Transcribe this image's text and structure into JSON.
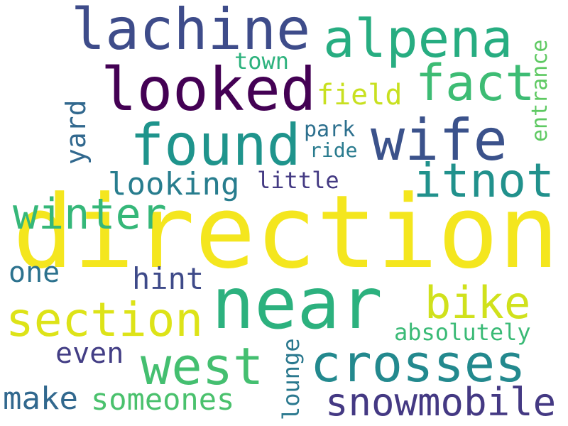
{
  "words": [
    {
      "text": "direction",
      "color": "#f4e61e"
    },
    {
      "text": "near",
      "color": "#2cb17e"
    },
    {
      "text": "lachine",
      "color": "#3e4c8a"
    },
    {
      "text": "alpena",
      "color": "#27ad81"
    },
    {
      "text": "looked",
      "color": "#440154"
    },
    {
      "text": "fact",
      "color": "#3dbc74"
    },
    {
      "text": "found",
      "color": "#1f948c"
    },
    {
      "text": "wife",
      "color": "#3b528b"
    },
    {
      "text": "winter",
      "color": "#35b779"
    },
    {
      "text": "itnot",
      "color": "#21918c"
    },
    {
      "text": "section",
      "color": "#dde318"
    },
    {
      "text": "bike",
      "color": "#d0e11c"
    },
    {
      "text": "west",
      "color": "#44bf70"
    },
    {
      "text": "crosses",
      "color": "#23898e"
    },
    {
      "text": "snowmobile",
      "color": "#443983"
    },
    {
      "text": "someones",
      "color": "#4ac16d"
    },
    {
      "text": "make",
      "color": "#31688e"
    },
    {
      "text": "even",
      "color": "#433e85"
    },
    {
      "text": "hint",
      "color": "#3e4a89"
    },
    {
      "text": "one",
      "color": "#2c728e"
    },
    {
      "text": "looking",
      "color": "#287d8e"
    },
    {
      "text": "little",
      "color": "#443a83"
    },
    {
      "text": "field",
      "color": "#c8e020"
    },
    {
      "text": "town",
      "color": "#2db27d"
    },
    {
      "text": "park",
      "color": "#2d708e"
    },
    {
      "text": "ride",
      "color": "#297b8e"
    },
    {
      "text": "yard",
      "color": "#31688e"
    },
    {
      "text": "entrance",
      "color": "#5ec962"
    },
    {
      "text": "absolutely",
      "color": "#3aba76"
    },
    {
      "text": "lounge",
      "color": "#2a788e"
    }
  ]
}
